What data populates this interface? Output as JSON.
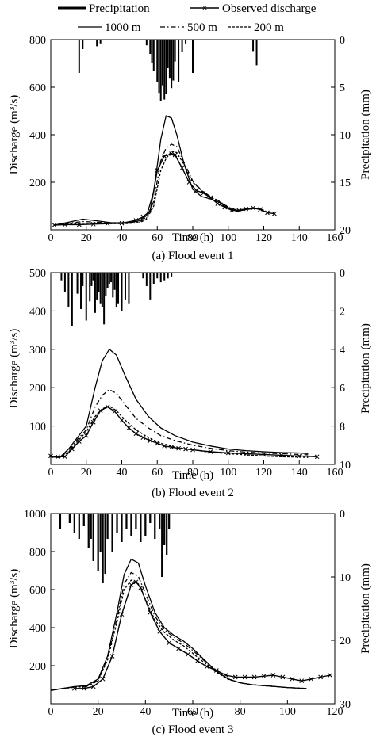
{
  "legend": {
    "precipitation": "Precipitation",
    "observed": "Observed discharge",
    "res1000": "1000 m",
    "res500": "500 m",
    "res200": "200 m"
  },
  "chart_data": [
    {
      "type": "line",
      "caption": "(a) Flood event 1",
      "xlabel": "Time (h)",
      "ylabel": "Discharge (m³/s)",
      "y2label": "Precipitation (mm)",
      "xlim": [
        0,
        160
      ],
      "ylim": [
        0,
        800
      ],
      "y2lim": [
        0,
        20
      ],
      "xticks": [
        0,
        20,
        40,
        60,
        80,
        100,
        120,
        140,
        160
      ],
      "yticks": [
        200,
        400,
        600,
        800
      ],
      "y2ticks": [
        0,
        5,
        10,
        15,
        20
      ],
      "precipitation": {
        "x": [
          16,
          18,
          26,
          28,
          54,
          56,
          57,
          58,
          60,
          61,
          62,
          63,
          64,
          65,
          66,
          67,
          68,
          69,
          70,
          72,
          74,
          76,
          80,
          114,
          116
        ],
        "values": [
          3.5,
          1.0,
          0.7,
          0.4,
          0.6,
          1.5,
          2.5,
          3.3,
          4.5,
          5.6,
          6.5,
          4.8,
          6.3,
          5.7,
          3.0,
          4.1,
          5.1,
          4.3,
          2.3,
          4.5,
          1.3,
          0.4,
          3.5,
          1.2,
          2.7
        ]
      },
      "series": [
        {
          "name": "Observed discharge",
          "style": "observed",
          "x": [
            2,
            8,
            16,
            24,
            32,
            40,
            48,
            52,
            56,
            60,
            64,
            68,
            70,
            74,
            78,
            82,
            86,
            90,
            94,
            98,
            102,
            106,
            110,
            114,
            118,
            122,
            126
          ],
          "y": [
            20,
            22,
            22,
            24,
            26,
            28,
            40,
            55,
            80,
            250,
            310,
            320,
            315,
            260,
            200,
            165,
            155,
            135,
            110,
            95,
            82,
            82,
            88,
            92,
            86,
            72,
            68
          ]
        },
        {
          "name": "1000 m",
          "style": "solid",
          "x": [
            2,
            10,
            18,
            26,
            34,
            42,
            50,
            54,
            58,
            62,
            65,
            68,
            71,
            75,
            80,
            85,
            90,
            95,
            100,
            105,
            110,
            115,
            120
          ],
          "y": [
            20,
            32,
            45,
            38,
            30,
            30,
            38,
            60,
            160,
            380,
            480,
            470,
            400,
            280,
            170,
            140,
            130,
            115,
            90,
            78,
            85,
            90,
            82
          ]
        },
        {
          "name": "500 m",
          "style": "dashdot",
          "x": [
            2,
            10,
            18,
            26,
            34,
            42,
            50,
            54,
            58,
            62,
            65,
            68,
            71,
            75,
            80,
            85,
            90,
            95,
            100,
            105,
            110,
            115,
            120
          ],
          "y": [
            20,
            28,
            35,
            32,
            28,
            28,
            34,
            50,
            120,
            290,
            345,
            360,
            350,
            285,
            205,
            165,
            140,
            120,
            95,
            82,
            88,
            92,
            84
          ]
        },
        {
          "name": "200 m",
          "style": "dash",
          "x": [
            2,
            10,
            18,
            26,
            34,
            42,
            50,
            54,
            58,
            62,
            65,
            68,
            71,
            75,
            80,
            85,
            90,
            95,
            100,
            105,
            110,
            115,
            120
          ],
          "y": [
            20,
            24,
            28,
            28,
            26,
            26,
            30,
            45,
            100,
            250,
            300,
            330,
            325,
            275,
            200,
            165,
            138,
            118,
            95,
            82,
            88,
            92,
            84
          ]
        }
      ]
    },
    {
      "type": "line",
      "caption": "(b) Flood event 2",
      "xlabel": "Time (h)",
      "ylabel": "Discharge (m³/s)",
      "y2label": "Precipitation (mm)",
      "xlim": [
        0,
        160
      ],
      "ylim": [
        0,
        500
      ],
      "y2lim": [
        0,
        10
      ],
      "xticks": [
        0,
        20,
        40,
        60,
        80,
        100,
        120,
        140,
        160
      ],
      "yticks": [
        100,
        200,
        300,
        400,
        500
      ],
      "y2ticks": [
        0,
        2,
        4,
        6,
        8,
        10
      ],
      "precipitation": {
        "x": [
          6,
          8,
          10,
          12,
          15,
          17,
          18,
          20,
          22,
          23,
          24,
          25,
          26,
          27,
          28,
          29,
          30,
          31,
          32,
          33,
          34,
          35,
          36,
          37,
          38,
          40,
          42,
          44,
          52,
          54,
          56,
          58,
          60,
          62,
          64,
          66,
          68
        ],
        "values": [
          0.4,
          1.0,
          1.8,
          2.8,
          1.1,
          1.9,
          0.7,
          2.5,
          1.5,
          0.7,
          0.4,
          2.1,
          1.4,
          1.0,
          1.6,
          1.8,
          2.7,
          1.2,
          0.8,
          0.6,
          0.5,
          1.3,
          0.9,
          1.8,
          1.6,
          2.0,
          1.4,
          1.6,
          0.3,
          0.7,
          1.4,
          0.6,
          0.3,
          0.5,
          0.4,
          0.3,
          0.2
        ]
      },
      "series": [
        {
          "name": "Observed discharge",
          "style": "observed",
          "x": [
            0,
            4,
            8,
            12,
            16,
            20,
            24,
            28,
            32,
            36,
            40,
            44,
            48,
            52,
            56,
            60,
            64,
            68,
            72,
            76,
            80,
            90,
            100,
            110,
            120,
            130,
            140,
            150
          ],
          "y": [
            22,
            20,
            20,
            40,
            60,
            75,
            110,
            140,
            150,
            138,
            115,
            95,
            80,
            70,
            62,
            55,
            48,
            45,
            42,
            40,
            38,
            33,
            30,
            28,
            26,
            24,
            22,
            20
          ]
        },
        {
          "name": "1000 m",
          "style": "solid",
          "x": [
            0,
            5,
            10,
            15,
            20,
            25,
            29,
            33,
            37,
            42,
            48,
            55,
            62,
            70,
            80,
            90,
            100,
            110,
            120,
            130,
            140,
            145
          ],
          "y": [
            20,
            18,
            40,
            70,
            100,
            200,
            270,
            300,
            285,
            230,
            170,
            125,
            95,
            75,
            58,
            48,
            40,
            36,
            33,
            31,
            30,
            28
          ]
        },
        {
          "name": "500 m",
          "style": "dashdot",
          "x": [
            0,
            5,
            10,
            15,
            20,
            25,
            29,
            33,
            37,
            42,
            48,
            55,
            62,
            70,
            80,
            90,
            100,
            110,
            120,
            130,
            140,
            145
          ],
          "y": [
            20,
            18,
            35,
            65,
            90,
            150,
            180,
            195,
            185,
            155,
            120,
            95,
            75,
            62,
            50,
            42,
            36,
            32,
            30,
            28,
            26,
            25
          ]
        },
        {
          "name": "200 m",
          "style": "dash",
          "x": [
            0,
            5,
            10,
            15,
            20,
            25,
            29,
            33,
            37,
            42,
            48,
            55,
            62,
            70,
            80,
            90,
            100,
            110,
            120,
            130,
            140,
            145
          ],
          "y": [
            20,
            18,
            32,
            60,
            85,
            125,
            145,
            152,
            140,
            115,
            90,
            70,
            55,
            45,
            38,
            32,
            28,
            25,
            22,
            20,
            19,
            18
          ]
        }
      ]
    },
    {
      "type": "line",
      "caption": "(c) Flood event 3",
      "xlabel": "Time (h)",
      "ylabel": "Discharge (m³/s)",
      "y2label": "Precipitation (mm)",
      "xlim": [
        0,
        120
      ],
      "ylim": [
        0,
        1000
      ],
      "y2lim": [
        0,
        30
      ],
      "xticks": [
        0,
        20,
        40,
        60,
        80,
        100,
        120
      ],
      "yticks": [
        200,
        400,
        600,
        800,
        1000
      ],
      "y2ticks": [
        0,
        10,
        20,
        30
      ],
      "precipitation": {
        "x": [
          4,
          8,
          10,
          12,
          14,
          16,
          17,
          18,
          20,
          21,
          22,
          23,
          24,
          26,
          28,
          30,
          32,
          34,
          36,
          38,
          40,
          42,
          44,
          46,
          47,
          48,
          49,
          50
        ],
        "values": [
          2.5,
          1.5,
          3.0,
          4.0,
          2.0,
          5.5,
          4.0,
          7.5,
          9.0,
          6.0,
          11.0,
          9.5,
          4.0,
          6.0,
          3.0,
          4.5,
          2.5,
          3.5,
          2.5,
          4.5,
          3.5,
          1.5,
          4.0,
          2.5,
          10.0,
          5.0,
          6.5,
          2.5
        ]
      },
      "series": [
        {
          "name": "Observed discharge",
          "style": "observed",
          "x": [
            10,
            14,
            18,
            22,
            26,
            30,
            34,
            36,
            38,
            42,
            46,
            50,
            54,
            58,
            62,
            66,
            70,
            74,
            78,
            82,
            86,
            90,
            94,
            98,
            102,
            106,
            110,
            114,
            118
          ],
          "y": [
            80,
            80,
            90,
            130,
            250,
            470,
            625,
            640,
            610,
            480,
            380,
            320,
            290,
            260,
            225,
            195,
            175,
            150,
            140,
            140,
            140,
            145,
            150,
            140,
            130,
            120,
            130,
            140,
            150
          ]
        },
        {
          "name": "1000 m",
          "style": "solid",
          "x": [
            0,
            5,
            10,
            15,
            20,
            24,
            28,
            31,
            34,
            37,
            40,
            44,
            48,
            52,
            56,
            60,
            65,
            70,
            75,
            80,
            85,
            90,
            95,
            100,
            108
          ],
          "y": [
            70,
            80,
            90,
            95,
            130,
            250,
            480,
            680,
            760,
            740,
            620,
            480,
            400,
            360,
            330,
            290,
            230,
            170,
            130,
            110,
            100,
            95,
            90,
            85,
            80
          ]
        },
        {
          "name": "500 m",
          "style": "dashdot",
          "x": [
            0,
            5,
            10,
            15,
            20,
            24,
            28,
            31,
            34,
            37,
            40,
            44,
            48,
            52,
            56,
            60,
            65,
            70,
            75,
            80,
            85,
            90,
            95,
            100,
            108
          ],
          "y": [
            70,
            80,
            88,
            92,
            125,
            240,
            450,
            630,
            690,
            670,
            580,
            460,
            390,
            350,
            320,
            280,
            225,
            170,
            130,
            110,
            100,
            95,
            90,
            85,
            80
          ]
        },
        {
          "name": "200 m",
          "style": "dash",
          "x": [
            0,
            5,
            10,
            15,
            20,
            24,
            28,
            31,
            34,
            37,
            40,
            44,
            48,
            52,
            56,
            60,
            65,
            70,
            75,
            80,
            85,
            90,
            95,
            100,
            108
          ],
          "y": [
            70,
            80,
            86,
            90,
            120,
            230,
            430,
            600,
            650,
            630,
            550,
            440,
            375,
            335,
            305,
            265,
            215,
            165,
            128,
            110,
            100,
            95,
            90,
            85,
            80
          ]
        }
      ]
    }
  ]
}
